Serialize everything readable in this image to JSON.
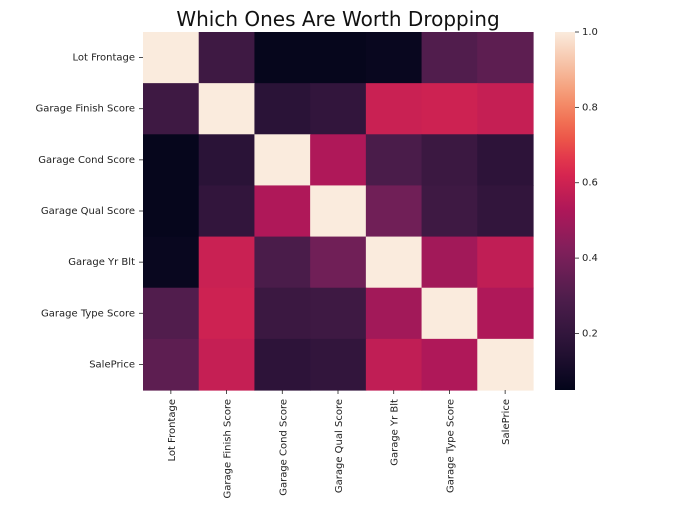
{
  "chart_data": {
    "type": "heatmap",
    "title": "Which Ones Are Worth Dropping",
    "row_labels": [
      "Lot Frontage",
      "Garage Finish Score",
      "Garage Cond Score",
      "Garage Qual Score",
      "Garage Yr Blt",
      "Garage Type Score",
      "SalePrice"
    ],
    "col_labels": [
      "Lot Frontage",
      "Garage Finish Score",
      "Garage Cond Score",
      "Garage Qual Score",
      "Garage Yr Blt",
      "Garage Type Score",
      "SalePrice"
    ],
    "values": [
      [
        1.0,
        0.24,
        0.06,
        0.06,
        0.07,
        0.3,
        0.33
      ],
      [
        0.24,
        1.0,
        0.17,
        0.2,
        0.59,
        0.6,
        0.58
      ],
      [
        0.06,
        0.17,
        1.0,
        0.53,
        0.28,
        0.23,
        0.18
      ],
      [
        0.06,
        0.2,
        0.53,
        1.0,
        0.38,
        0.24,
        0.2
      ],
      [
        0.07,
        0.59,
        0.28,
        0.38,
        1.0,
        0.5,
        0.57
      ],
      [
        0.3,
        0.6,
        0.23,
        0.24,
        0.5,
        1.0,
        0.53
      ],
      [
        0.33,
        0.58,
        0.18,
        0.2,
        0.57,
        0.53,
        1.0
      ]
    ],
    "vmin": 0.05,
    "vmax": 1.0,
    "colormap": "rocket",
    "colorbar": {
      "ticks": [
        0.2,
        0.4,
        0.6,
        0.8,
        1.0
      ],
      "tick_labels": [
        "0.2",
        "0.4",
        "0.6",
        "0.8",
        "1.0"
      ]
    },
    "grid": false
  }
}
